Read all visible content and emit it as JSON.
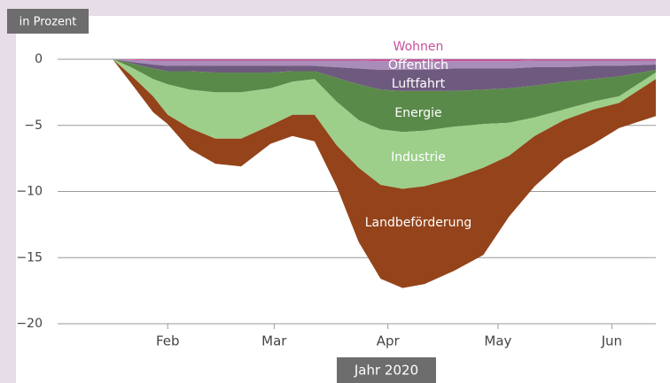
{
  "chart_data": {
    "type": "area",
    "stacked": true,
    "y_label": "in Prozent",
    "x_label": "Jahr 2020",
    "x": [
      17,
      22,
      28,
      32,
      38,
      45,
      52,
      60,
      66,
      72,
      78,
      84,
      90,
      96,
      102,
      110,
      118,
      125,
      132,
      140,
      148,
      155,
      165
    ],
    "xlim": [
      2,
      165
    ],
    "xticks": [
      {
        "value": 32,
        "label": "Feb"
      },
      {
        "value": 61,
        "label": "Mar"
      },
      {
        "value": 92,
        "label": "Apr"
      },
      {
        "value": 122,
        "label": "May"
      },
      {
        "value": 153,
        "label": "Jun"
      }
    ],
    "ylim": [
      -20,
      0
    ],
    "yticks": [
      {
        "value": -20,
        "label": "−20"
      },
      {
        "value": -15,
        "label": "−15"
      },
      {
        "value": -10,
        "label": "−10"
      },
      {
        "value": -5,
        "label": "−5"
      },
      0
    ],
    "grid": true,
    "series": [
      {
        "name": "Wohnen",
        "color": "#c8509a",
        "values": [
          0,
          -0.05,
          -0.1,
          -0.1,
          -0.1,
          -0.1,
          -0.1,
          -0.1,
          -0.1,
          -0.1,
          -0.1,
          -0.1,
          -0.15,
          -0.15,
          -0.15,
          -0.15,
          -0.15,
          -0.15,
          -0.1,
          -0.1,
          -0.1,
          -0.1,
          -0.1
        ]
      },
      {
        "name": "Öffentlich",
        "color": "#a98db8",
        "values": [
          0,
          -0.15,
          -0.3,
          -0.4,
          -0.4,
          -0.4,
          -0.4,
          -0.4,
          -0.4,
          -0.4,
          -0.5,
          -0.6,
          -0.65,
          -0.65,
          -0.65,
          -0.55,
          -0.55,
          -0.55,
          -0.5,
          -0.5,
          -0.4,
          -0.4,
          -0.3
        ]
      },
      {
        "name": "Luftfahrt",
        "color": "#6e5a7e",
        "values": [
          0,
          -0.1,
          -0.3,
          -0.4,
          -0.4,
          -0.5,
          -0.5,
          -0.5,
          -0.4,
          -0.4,
          -0.8,
          -1.2,
          -1.5,
          -1.6,
          -1.6,
          -1.7,
          -1.6,
          -1.5,
          -1.4,
          -1.1,
          -1.0,
          -0.8,
          -0.4
        ]
      },
      {
        "name": "Energie",
        "color": "#5a8a4a",
        "values": [
          0,
          -0.3,
          -0.8,
          -1.0,
          -1.4,
          -1.5,
          -1.5,
          -1.2,
          -0.8,
          -0.6,
          -1.8,
          -2.7,
          -3.0,
          -3.1,
          -3.0,
          -2.7,
          -2.6,
          -2.6,
          -2.4,
          -2.1,
          -1.7,
          -1.5,
          -0.2
        ]
      },
      {
        "name": "Industrie",
        "color": "#9dcf8a",
        "values": [
          0,
          -0.6,
          -1.3,
          -2.3,
          -2.9,
          -3.5,
          -3.5,
          -2.8,
          -2.5,
          -2.7,
          -3.3,
          -3.6,
          -4.2,
          -4.3,
          -4.2,
          -3.9,
          -3.3,
          -2.5,
          -1.4,
          -0.8,
          -0.6,
          -0.5,
          -0.5
        ]
      },
      {
        "name": "Landbeförderung",
        "color": "#94431a",
        "values": [
          0,
          -0.6,
          -1.2,
          -0.7,
          -1.6,
          -1.9,
          -2.1,
          -1.4,
          -1.6,
          -2.0,
          -3.1,
          -5.6,
          -7.1,
          -7.5,
          -7.4,
          -7.0,
          -6.6,
          -4.6,
          -3.8,
          -3.0,
          -2.6,
          -1.9,
          -2.8
        ]
      }
    ]
  }
}
